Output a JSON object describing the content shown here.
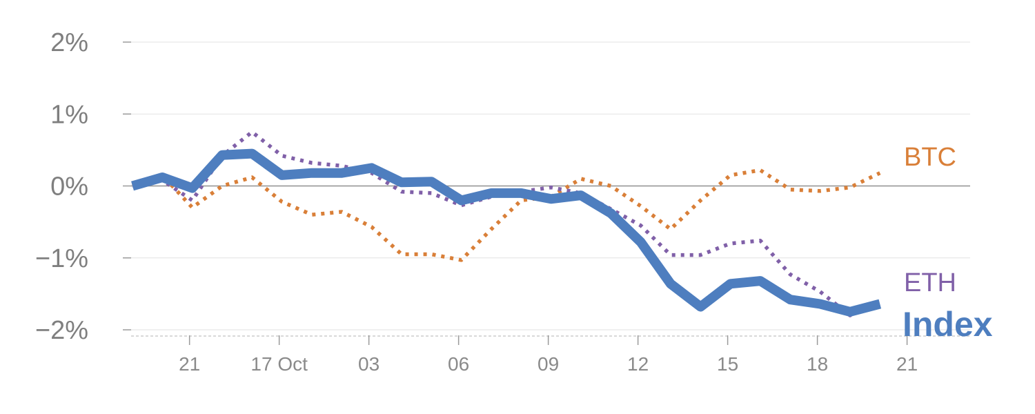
{
  "chart_data": {
    "type": "line",
    "title": "",
    "xlabel": "",
    "ylabel": "",
    "ylim": [
      -2,
      2
    ],
    "y_ticks": [
      2,
      1,
      0,
      -1,
      -2
    ],
    "y_tick_labels": [
      "2%",
      "1%",
      "0%",
      "−1%",
      "−2%"
    ],
    "x_ticks": [
      {
        "pos": 2,
        "label": "21"
      },
      {
        "pos": 5,
        "label": "17 Oct"
      },
      {
        "pos": 8,
        "label": "03"
      },
      {
        "pos": 11,
        "label": "06"
      },
      {
        "pos": 14,
        "label": "09"
      },
      {
        "pos": 17,
        "label": "12"
      },
      {
        "pos": 20,
        "label": "15"
      },
      {
        "pos": 23,
        "label": "18"
      },
      {
        "pos": 26,
        "label": "21"
      }
    ],
    "x": [
      0,
      1,
      2,
      3,
      4,
      5,
      6,
      7,
      8,
      9,
      10,
      11,
      12,
      13,
      14,
      15,
      16,
      17,
      18,
      19,
      20,
      21,
      22,
      23,
      24,
      25
    ],
    "series": [
      {
        "name": "BTC",
        "color": "#d97f38",
        "style": "dotted",
        "values": [
          0.0,
          0.15,
          -0.3,
          0.0,
          0.12,
          -0.22,
          -0.4,
          -0.36,
          -0.57,
          -0.95,
          -0.95,
          -1.03,
          -0.6,
          -0.2,
          -0.15,
          0.1,
          0.0,
          -0.28,
          -0.6,
          -0.2,
          0.15,
          0.22,
          -0.05,
          -0.07,
          -0.02,
          0.18
        ]
      },
      {
        "name": "ETH",
        "color": "#8060a8",
        "style": "dotted",
        "values": [
          0.0,
          0.08,
          -0.2,
          0.42,
          0.75,
          0.42,
          0.32,
          0.28,
          0.18,
          -0.08,
          -0.1,
          -0.27,
          -0.15,
          -0.08,
          -0.02,
          -0.1,
          -0.32,
          -0.55,
          -0.96,
          -0.96,
          -0.8,
          -0.76,
          -1.23,
          -1.47,
          -1.8,
          -1.62
        ]
      },
      {
        "name": "Index",
        "color": "#4e7ebf",
        "style": "solid",
        "values": [
          0.0,
          0.12,
          -0.03,
          0.43,
          0.45,
          0.15,
          0.18,
          0.18,
          0.25,
          0.05,
          0.06,
          -0.2,
          -0.1,
          -0.1,
          -0.18,
          -0.13,
          -0.38,
          -0.78,
          -1.36,
          -1.68,
          -1.36,
          -1.32,
          -1.58,
          -1.64,
          -1.75,
          -1.64
        ]
      }
    ],
    "labels": {
      "BTC": "BTC",
      "ETH": "ETH",
      "Index": "Index"
    }
  }
}
